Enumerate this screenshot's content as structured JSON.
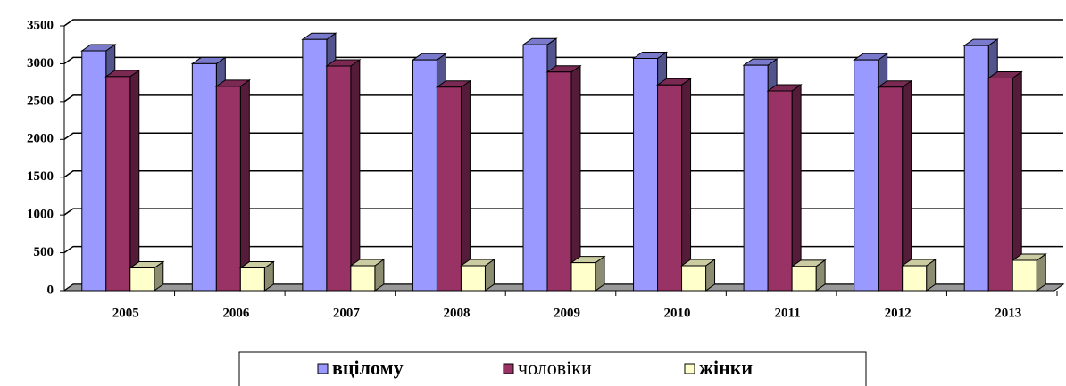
{
  "chart_data": {
    "type": "bar3d",
    "categories": [
      "2005",
      "2006",
      "2007",
      "2008",
      "2009",
      "2010",
      "2011",
      "2012",
      "2013"
    ],
    "series": [
      {
        "name": "вцілому",
        "color": "#9999ff",
        "values": [
          3170,
          3000,
          3320,
          3050,
          3250,
          3070,
          2980,
          3050,
          3240
        ]
      },
      {
        "name": "чоловіки",
        "color": "#993366",
        "values": [
          2830,
          2700,
          2970,
          2690,
          2890,
          2720,
          2640,
          2690,
          2810
        ]
      },
      {
        "name": "жінки",
        "color": "#ffffcc",
        "values": [
          300,
          300,
          330,
          330,
          370,
          330,
          320,
          330,
          400
        ]
      }
    ],
    "ylim": [
      0,
      3500
    ],
    "yticks": [
      0,
      500,
      1000,
      1500,
      2000,
      2500,
      3000,
      3500
    ],
    "grid": true
  }
}
